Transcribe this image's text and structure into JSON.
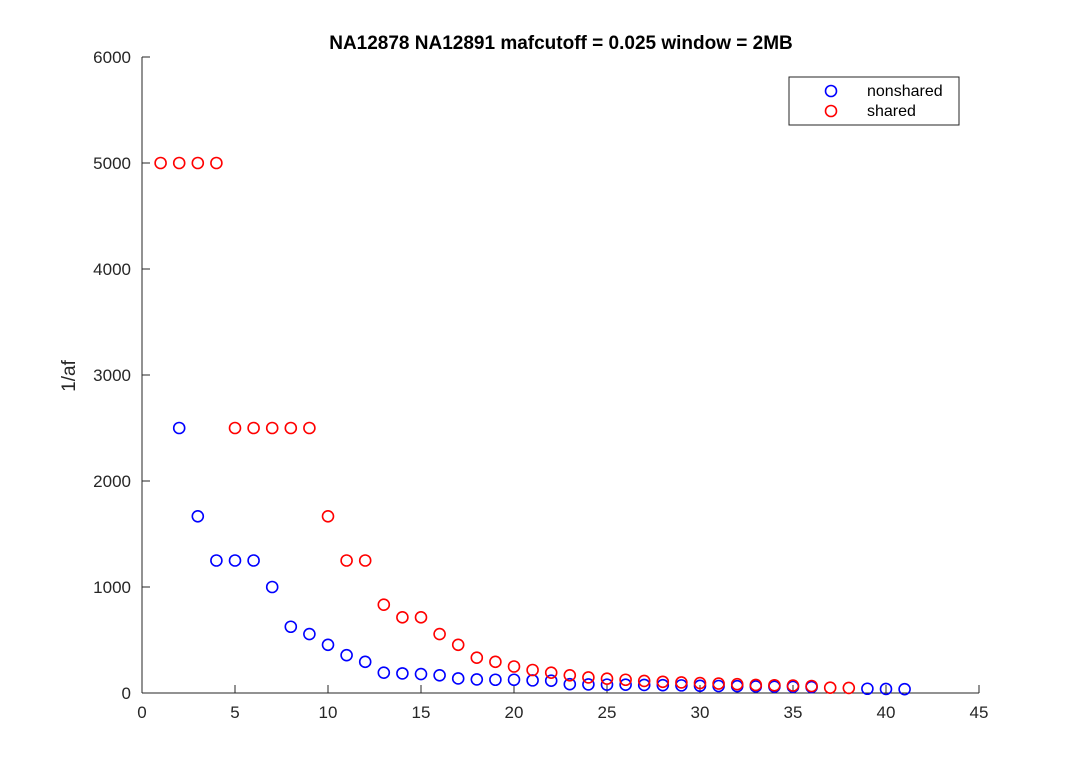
{
  "chart_data": {
    "type": "scatter",
    "title": "NA12878 NA12891 mafcutoff = 0.025 window = 2MB",
    "xlabel": "",
    "ylabel": "1/af",
    "xlim": [
      0,
      45
    ],
    "ylim": [
      0,
      6000
    ],
    "xticks": [
      "0",
      "5",
      "10",
      "15",
      "20",
      "25",
      "30",
      "35",
      "40",
      "45"
    ],
    "yticks": [
      "0",
      "1000",
      "2000",
      "3000",
      "4000",
      "5000",
      "6000"
    ],
    "grid": false,
    "legend_position": "top-right",
    "marker": "open-circle",
    "series": [
      {
        "name": "nonshared",
        "color": "#0000ff",
        "x": [
          2,
          3,
          4,
          5,
          6,
          7,
          8,
          9,
          10,
          11,
          12,
          13,
          14,
          15,
          16,
          17,
          18,
          19,
          20,
          21,
          22,
          23,
          24,
          25,
          26,
          27,
          28,
          29,
          30,
          31,
          32,
          33,
          34,
          35,
          36,
          39,
          40,
          41
        ],
        "y": [
          2500,
          1667,
          1250,
          1250,
          1250,
          1000,
          625,
          556,
          455,
          357,
          294,
          192,
          185,
          179,
          167,
          137,
          128,
          125,
          125,
          119,
          116,
          83,
          81,
          79,
          78,
          76,
          74,
          72,
          68,
          66,
          64,
          62,
          60,
          58,
          56,
          40,
          38,
          36
        ]
      },
      {
        "name": "shared",
        "color": "#ff0000",
        "x": [
          1,
          2,
          3,
          4,
          5,
          6,
          7,
          8,
          9,
          10,
          11,
          12,
          13,
          14,
          15,
          16,
          17,
          18,
          19,
          20,
          21,
          22,
          23,
          24,
          25,
          26,
          27,
          28,
          29,
          30,
          31,
          32,
          33,
          34,
          35,
          36,
          37,
          38
        ],
        "y": [
          5000,
          5000,
          5000,
          5000,
          2500,
          2500,
          2500,
          2500,
          2500,
          1667,
          1250,
          1250,
          833,
          714,
          714,
          556,
          455,
          333,
          294,
          250,
          217,
          192,
          167,
          147,
          135,
          125,
          114,
          106,
          100,
          94,
          89,
          83,
          76,
          73,
          70,
          66,
          50,
          48
        ]
      }
    ]
  }
}
